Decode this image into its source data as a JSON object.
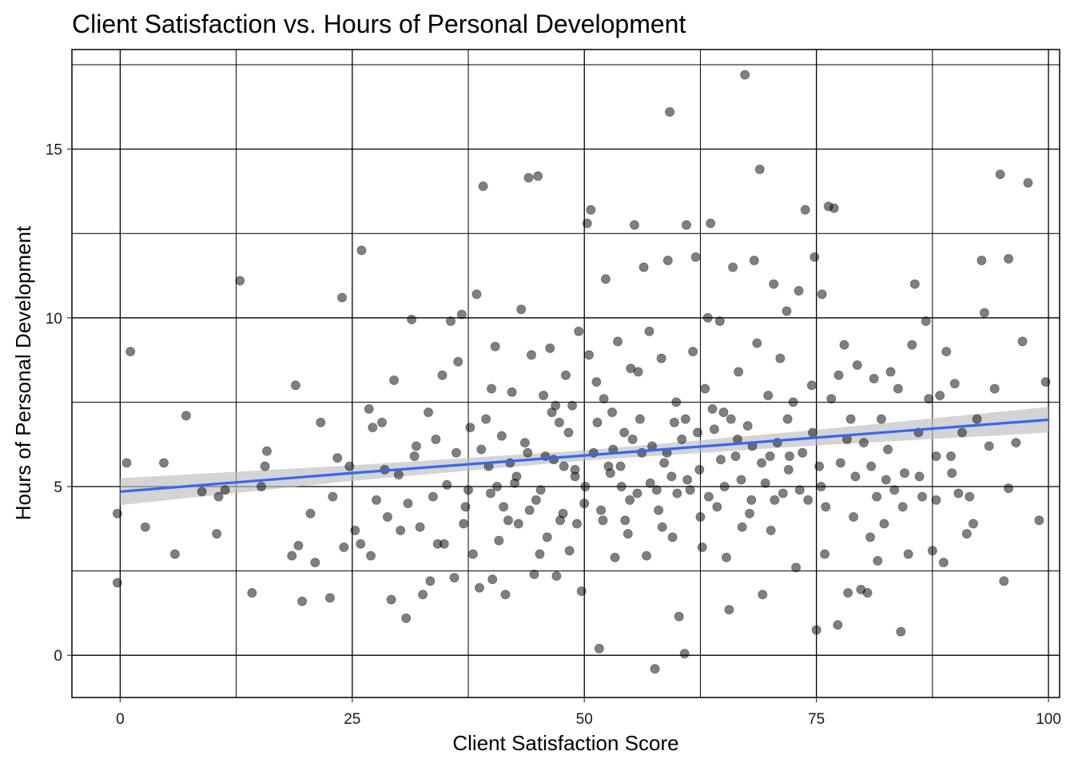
{
  "chart_data": {
    "type": "scatter",
    "title": "Client Satisfaction vs. Hours of Personal Development",
    "xlabel": "Client Satisfaction Score",
    "ylabel": "Hours of Personal Development",
    "xlim": [
      -5.2,
      101.2
    ],
    "ylim": [
      -1.25,
      17.95
    ],
    "x_ticks": [
      0,
      25,
      50,
      75,
      100
    ],
    "y_ticks": [
      0,
      5,
      10,
      15
    ],
    "x_minor_grid": [
      12.5,
      37.5,
      62.5,
      87.5
    ],
    "y_minor_grid": [
      2.5,
      7.5,
      12.5,
      17.5
    ],
    "grid": true,
    "point_color": "#000000",
    "point_opacity": 0.5,
    "trend": {
      "type": "linear",
      "color": "#3366FF",
      "band_color": "#bdbdbd",
      "x": [
        0,
        25,
        50,
        75,
        100
      ],
      "fit": [
        4.85,
        5.4,
        5.92,
        6.45,
        6.98
      ],
      "lower": [
        4.45,
        5.17,
        5.77,
        6.22,
        6.6
      ],
      "upper": [
        5.25,
        5.63,
        6.07,
        6.68,
        7.36
      ]
    },
    "points": [
      [
        -0.3,
        2.15
      ],
      [
        -0.3,
        4.2
      ],
      [
        0.7,
        5.7
      ],
      [
        1.1,
        9.0
      ],
      [
        2.7,
        3.8
      ],
      [
        4.7,
        5.7
      ],
      [
        5.9,
        3.0
      ],
      [
        7.1,
        7.1
      ],
      [
        8.8,
        4.85
      ],
      [
        10.4,
        3.6
      ],
      [
        10.6,
        4.7
      ],
      [
        11.3,
        4.9
      ],
      [
        12.9,
        11.1
      ],
      [
        14.2,
        1.85
      ],
      [
        15.2,
        5.0
      ],
      [
        15.6,
        5.6
      ],
      [
        15.8,
        6.05
      ],
      [
        18.5,
        2.95
      ],
      [
        18.9,
        8.0
      ],
      [
        19.2,
        3.25
      ],
      [
        19.6,
        1.6
      ],
      [
        20.5,
        4.2
      ],
      [
        21.0,
        2.75
      ],
      [
        21.6,
        6.9
      ],
      [
        22.6,
        1.7
      ],
      [
        22.9,
        4.7
      ],
      [
        23.4,
        5.85
      ],
      [
        23.9,
        10.6
      ],
      [
        24.1,
        3.2
      ],
      [
        24.7,
        5.6
      ],
      [
        25.3,
        3.7
      ],
      [
        26.0,
        12.0
      ],
      [
        26.8,
        7.3
      ],
      [
        27.2,
        6.75
      ],
      [
        27.6,
        4.6
      ],
      [
        28.2,
        6.9
      ],
      [
        28.8,
        4.1
      ],
      [
        29.2,
        1.65
      ],
      [
        29.5,
        8.15
      ],
      [
        30.0,
        5.35
      ],
      [
        30.8,
        1.1
      ],
      [
        31.4,
        9.95
      ],
      [
        31.9,
        6.2
      ],
      [
        32.3,
        3.8
      ],
      [
        32.6,
        1.8
      ],
      [
        33.2,
        7.2
      ],
      [
        33.7,
        4.7
      ],
      [
        34.2,
        3.3
      ],
      [
        34.7,
        8.3
      ],
      [
        35.2,
        5.05
      ],
      [
        35.6,
        9.9
      ],
      [
        36.0,
        2.3
      ],
      [
        36.4,
        8.7
      ],
      [
        36.8,
        10.1
      ],
      [
        37.2,
        4.4
      ],
      [
        37.7,
        6.75
      ],
      [
        38.0,
        3.0
      ],
      [
        38.4,
        10.7
      ],
      [
        38.7,
        2.0
      ],
      [
        39.1,
        13.9
      ],
      [
        39.4,
        7.0
      ],
      [
        39.7,
        5.6
      ],
      [
        40.1,
        2.25
      ],
      [
        40.4,
        9.15
      ],
      [
        40.8,
        3.4
      ],
      [
        41.1,
        6.5
      ],
      [
        41.5,
        1.8
      ],
      [
        41.8,
        4.0
      ],
      [
        42.2,
        7.8
      ],
      [
        42.5,
        5.1
      ],
      [
        42.9,
        3.9
      ],
      [
        43.2,
        10.25
      ],
      [
        43.6,
        6.3
      ],
      [
        44.0,
        14.15
      ],
      [
        44.3,
        8.9
      ],
      [
        44.6,
        2.4
      ],
      [
        45.0,
        14.2
      ],
      [
        45.3,
        4.9
      ],
      [
        45.6,
        7.7
      ],
      [
        46.0,
        3.5
      ],
      [
        46.3,
        9.1
      ],
      [
        46.7,
        5.8
      ],
      [
        47.0,
        2.35
      ],
      [
        47.3,
        6.9
      ],
      [
        47.7,
        4.2
      ],
      [
        48.0,
        8.3
      ],
      [
        48.4,
        3.1
      ],
      [
        48.7,
        7.4
      ],
      [
        49.0,
        5.3
      ],
      [
        49.4,
        9.6
      ],
      [
        49.7,
        1.9
      ],
      [
        50.0,
        4.5
      ],
      [
        50.3,
        12.8
      ],
      [
        50.7,
        13.2
      ],
      [
        51.0,
        6.0
      ],
      [
        51.3,
        8.1
      ],
      [
        51.6,
        0.2
      ],
      [
        52.0,
        4.0
      ],
      [
        52.3,
        11.15
      ],
      [
        52.6,
        5.6
      ],
      [
        53.0,
        7.2
      ],
      [
        53.3,
        2.9
      ],
      [
        53.6,
        9.3
      ],
      [
        54.0,
        5.0
      ],
      [
        54.3,
        6.6
      ],
      [
        54.7,
        3.6
      ],
      [
        55.0,
        8.5
      ],
      [
        55.4,
        12.75
      ],
      [
        55.7,
        4.8
      ],
      [
        56.0,
        7.0
      ],
      [
        56.4,
        11.5
      ],
      [
        56.7,
        2.95
      ],
      [
        57.0,
        9.6
      ],
      [
        57.3,
        6.2
      ],
      [
        57.6,
        -0.4
      ],
      [
        58.0,
        4.3
      ],
      [
        58.3,
        8.8
      ],
      [
        58.6,
        5.7
      ],
      [
        59.0,
        11.7
      ],
      [
        59.2,
        16.1
      ],
      [
        59.5,
        3.5
      ],
      [
        59.9,
        7.5
      ],
      [
        60.2,
        1.15
      ],
      [
        60.5,
        6.4
      ],
      [
        60.8,
        0.05
      ],
      [
        61.0,
        12.75
      ],
      [
        61.4,
        4.9
      ],
      [
        61.7,
        9.0
      ],
      [
        62.0,
        11.8
      ],
      [
        62.4,
        5.5
      ],
      [
        62.7,
        3.2
      ],
      [
        63.0,
        7.9
      ],
      [
        63.3,
        10.0
      ],
      [
        63.6,
        12.8
      ],
      [
        64.0,
        6.7
      ],
      [
        64.3,
        4.4
      ],
      [
        64.6,
        9.9
      ],
      [
        65.0,
        7.2
      ],
      [
        65.3,
        2.9
      ],
      [
        65.6,
        1.35
      ],
      [
        66.0,
        11.5
      ],
      [
        66.3,
        5.9
      ],
      [
        66.6,
        8.4
      ],
      [
        67.0,
        3.8
      ],
      [
        67.3,
        17.2
      ],
      [
        67.6,
        6.8
      ],
      [
        68.0,
        4.6
      ],
      [
        68.3,
        11.7
      ],
      [
        68.6,
        9.25
      ],
      [
        68.9,
        14.4
      ],
      [
        69.2,
        1.8
      ],
      [
        69.5,
        5.1
      ],
      [
        69.8,
        7.7
      ],
      [
        70.1,
        3.7
      ],
      [
        70.4,
        11.0
      ],
      [
        70.8,
        6.3
      ],
      [
        71.1,
        8.8
      ],
      [
        71.4,
        4.8
      ],
      [
        71.8,
        10.2
      ],
      [
        72.1,
        5.9
      ],
      [
        72.5,
        7.5
      ],
      [
        72.8,
        2.6
      ],
      [
        73.1,
        10.8
      ],
      [
        73.5,
        6.0
      ],
      [
        73.8,
        13.2
      ],
      [
        74.1,
        4.6
      ],
      [
        74.5,
        8.0
      ],
      [
        74.8,
        11.8
      ],
      [
        75.0,
        0.75
      ],
      [
        75.3,
        5.6
      ],
      [
        75.6,
        10.7
      ],
      [
        75.9,
        3.0
      ],
      [
        76.3,
        13.3
      ],
      [
        76.6,
        7.6
      ],
      [
        76.9,
        13.25
      ],
      [
        77.3,
        0.9
      ],
      [
        77.6,
        5.7
      ],
      [
        78.0,
        9.2
      ],
      [
        78.4,
        1.85
      ],
      [
        78.7,
        7.0
      ],
      [
        79.0,
        4.1
      ],
      [
        79.4,
        8.6
      ],
      [
        79.8,
        1.95
      ],
      [
        80.1,
        6.3
      ],
      [
        80.5,
        1.85
      ],
      [
        80.9,
        5.6
      ],
      [
        81.2,
        8.2
      ],
      [
        81.6,
        2.8
      ],
      [
        82.0,
        7.0
      ],
      [
        82.3,
        3.9
      ],
      [
        82.7,
        6.1
      ],
      [
        83.0,
        8.4
      ],
      [
        83.4,
        4.9
      ],
      [
        83.8,
        7.9
      ],
      [
        84.1,
        0.7
      ],
      [
        84.5,
        5.4
      ],
      [
        84.9,
        3.0
      ],
      [
        85.3,
        9.2
      ],
      [
        85.6,
        11.0
      ],
      [
        86.0,
        6.6
      ],
      [
        86.4,
        4.7
      ],
      [
        86.8,
        9.9
      ],
      [
        87.1,
        7.6
      ],
      [
        87.5,
        3.1
      ],
      [
        87.9,
        5.9
      ],
      [
        88.3,
        7.7
      ],
      [
        88.7,
        2.75
      ],
      [
        89.0,
        9.0
      ],
      [
        89.5,
        5.9
      ],
      [
        89.9,
        8.05
      ],
      [
        90.3,
        4.8
      ],
      [
        90.7,
        6.6
      ],
      [
        91.2,
        3.6
      ],
      [
        91.5,
        4.7
      ],
      [
        91.9,
        3.9
      ],
      [
        92.3,
        7.0
      ],
      [
        92.8,
        11.7
      ],
      [
        93.1,
        10.15
      ],
      [
        93.6,
        6.2
      ],
      [
        94.2,
        7.9
      ],
      [
        94.8,
        14.25
      ],
      [
        95.2,
        2.2
      ],
      [
        95.7,
        11.75
      ],
      [
        95.7,
        4.95
      ],
      [
        96.5,
        6.3
      ],
      [
        97.2,
        9.3
      ],
      [
        97.8,
        14.0
      ],
      [
        99.0,
        4.0
      ],
      [
        99.7,
        8.1
      ],
      [
        25.9,
        3.3
      ],
      [
        27.0,
        2.95
      ],
      [
        28.5,
        5.5
      ],
      [
        30.2,
        3.7
      ],
      [
        31.7,
        5.9
      ],
      [
        33.4,
        2.2
      ],
      [
        34.9,
        3.3
      ],
      [
        36.2,
        6.0
      ],
      [
        37.5,
        4.9
      ],
      [
        38.9,
        6.1
      ],
      [
        40.0,
        7.9
      ],
      [
        41.3,
        4.4
      ],
      [
        42.7,
        5.3
      ],
      [
        43.9,
        6.0
      ],
      [
        45.2,
        3.0
      ],
      [
        46.5,
        7.2
      ],
      [
        47.8,
        5.6
      ],
      [
        49.2,
        3.9
      ],
      [
        50.5,
        8.9
      ],
      [
        51.8,
        4.3
      ],
      [
        53.1,
        6.1
      ],
      [
        54.4,
        4.0
      ],
      [
        55.8,
        8.4
      ],
      [
        57.1,
        5.1
      ],
      [
        58.4,
        3.8
      ],
      [
        59.7,
        6.9
      ],
      [
        61.1,
        5.2
      ],
      [
        62.5,
        4.1
      ],
      [
        63.8,
        7.3
      ],
      [
        65.1,
        5.0
      ],
      [
        66.5,
        6.4
      ],
      [
        67.8,
        4.2
      ],
      [
        69.1,
        5.7
      ],
      [
        70.5,
        4.6
      ],
      [
        71.9,
        7.0
      ],
      [
        73.2,
        4.9
      ],
      [
        74.6,
        6.6
      ],
      [
        76.0,
        4.4
      ],
      [
        77.4,
        8.3
      ],
      [
        79.2,
        5.3
      ],
      [
        80.8,
        3.5
      ],
      [
        82.5,
        5.2
      ],
      [
        84.3,
        4.4
      ],
      [
        86.1,
        5.3
      ],
      [
        87.9,
        4.6
      ],
      [
        89.6,
        5.4
      ],
      [
        31.0,
        4.5
      ],
      [
        34.0,
        6.4
      ],
      [
        37.0,
        3.9
      ],
      [
        40.6,
        5.0
      ],
      [
        44.8,
        4.6
      ],
      [
        48.3,
        6.6
      ],
      [
        52.8,
        5.4
      ],
      [
        56.2,
        6.0
      ],
      [
        60.0,
        4.8
      ],
      [
        64.7,
        5.8
      ],
      [
        68.1,
        6.2
      ],
      [
        72.0,
        5.5
      ],
      [
        75.5,
        5.0
      ],
      [
        78.3,
        6.4
      ],
      [
        81.5,
        4.7
      ],
      [
        50.1,
        5.0
      ],
      [
        49.0,
        5.5
      ],
      [
        51.4,
        6.9
      ],
      [
        53.9,
        5.6
      ],
      [
        55.2,
        6.4
      ],
      [
        45.8,
        5.9
      ],
      [
        42.0,
        5.7
      ],
      [
        39.9,
        4.8
      ],
      [
        58.9,
        6.0
      ],
      [
        62.2,
        6.6
      ],
      [
        66.9,
        5.2
      ],
      [
        70.0,
        5.9
      ],
      [
        47.4,
        4.0
      ],
      [
        54.9,
        4.6
      ],
      [
        57.8,
        4.9
      ],
      [
        63.4,
        4.7
      ],
      [
        46.9,
        7.4
      ],
      [
        59.4,
        5.3
      ],
      [
        44.1,
        4.3
      ],
      [
        52.1,
        7.6
      ],
      [
        60.9,
        7.0
      ],
      [
        65.8,
        7.0
      ]
    ]
  }
}
